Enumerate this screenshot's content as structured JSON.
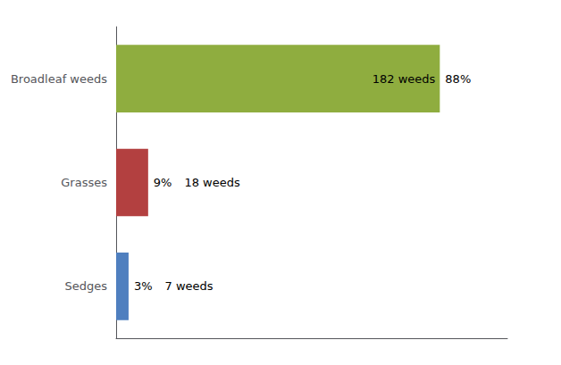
{
  "chart_data": {
    "type": "bar",
    "orientation": "horizontal",
    "categories": [
      "Broadleaf weeds",
      "Grasses",
      "Sedges"
    ],
    "values": [
      182,
      18,
      7
    ],
    "value_labels": [
      "182 weeds",
      "18 weeds",
      "7 weeds"
    ],
    "percentages": [
      88,
      9,
      3
    ],
    "percentage_labels": [
      "88%",
      "9%",
      "3%"
    ],
    "colors": [
      "#8fad3f",
      "#b34040",
      "#4f7fbf"
    ],
    "xlim": [
      0,
      220
    ],
    "grid": false,
    "tick_labels": "y"
  }
}
